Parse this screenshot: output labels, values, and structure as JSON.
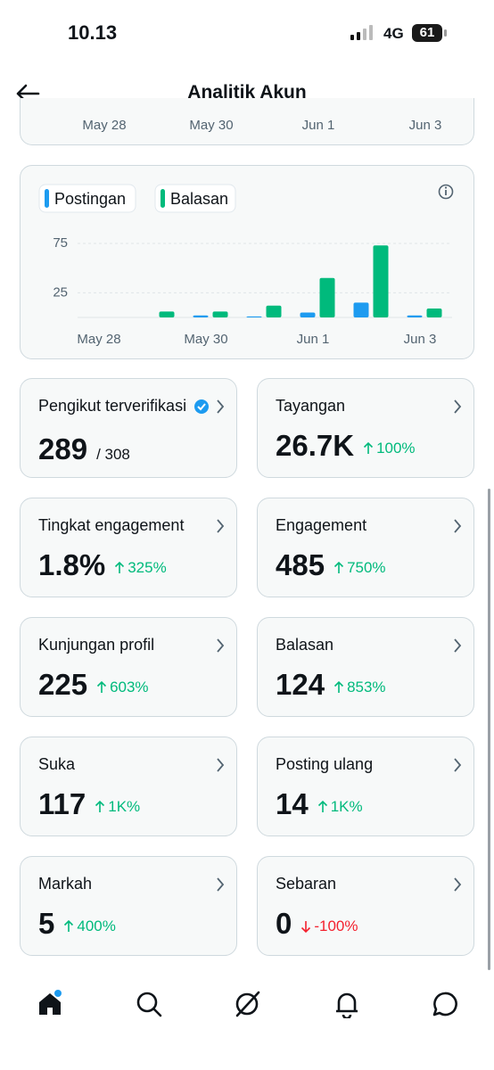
{
  "status_bar": {
    "time": "10.13",
    "network": "4G",
    "battery": "61"
  },
  "header": {
    "title": "Analitik Akun"
  },
  "previous_chart": {
    "x_labels": [
      "May 28",
      "May 30",
      "Jun 1",
      "Jun 3"
    ]
  },
  "chart_data": {
    "type": "bar",
    "categories": [
      "May 28",
      null,
      "May 30",
      null,
      "Jun 1",
      null,
      "Jun 3"
    ],
    "series": [
      {
        "name": "Postingan",
        "color": "#1d9bf0",
        "values": [
          0,
          0,
          2,
          1,
          5,
          15,
          2
        ]
      },
      {
        "name": "Balasan",
        "color": "#00ba7c",
        "values": [
          0,
          6,
          6,
          12,
          40,
          73,
          9
        ]
      }
    ],
    "ylim": [
      0,
      85
    ],
    "yticks": [
      25,
      75
    ],
    "grid": true
  },
  "metrics": [
    {
      "title": "Pengikut terverifikasi",
      "value": "289",
      "total": "/ 308",
      "verified": true
    },
    {
      "title": "Tayangan",
      "value": "26.7K",
      "change": "100%",
      "trend": "up"
    },
    {
      "title": "Tingkat engagement",
      "value": "1.8%",
      "change": "325%",
      "trend": "up"
    },
    {
      "title": "Engagement",
      "value": "485",
      "change": "750%",
      "trend": "up"
    },
    {
      "title": "Kunjungan profil",
      "value": "225",
      "change": "603%",
      "trend": "up"
    },
    {
      "title": "Balasan",
      "value": "124",
      "change": "853%",
      "trend": "up"
    },
    {
      "title": "Suka",
      "value": "117",
      "change": "1K%",
      "trend": "up"
    },
    {
      "title": "Posting ulang",
      "value": "14",
      "change": "1K%",
      "trend": "up"
    },
    {
      "title": "Markah",
      "value": "5",
      "change": "400%",
      "trend": "up"
    },
    {
      "title": "Sebaran",
      "value": "0",
      "change": "-100%",
      "trend": "down"
    }
  ]
}
